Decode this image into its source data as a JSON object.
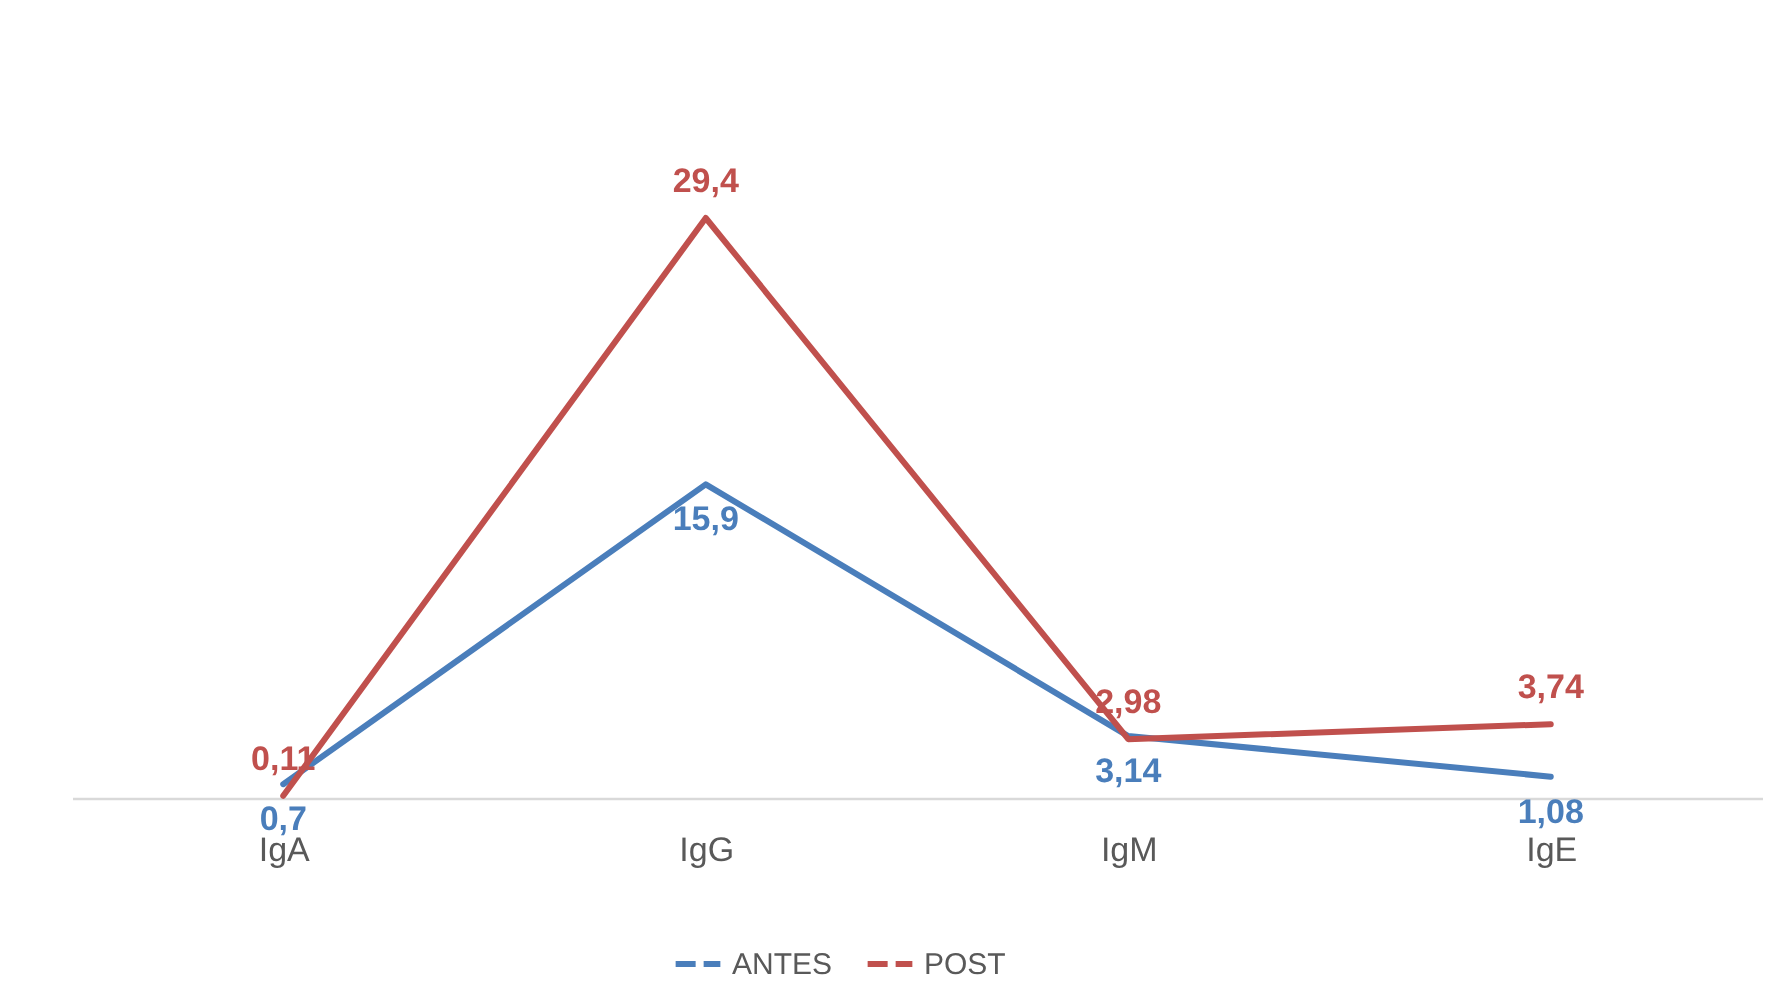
{
  "chart_data": {
    "type": "line",
    "categories": [
      "IgA",
      "IgG",
      "IgM",
      "IgE"
    ],
    "series": [
      {
        "name": "ANTES",
        "color": "#4a7ebb",
        "values": [
          0.7,
          15.9,
          3.14,
          1.08
        ],
        "value_labels": [
          "0,7",
          "15,9",
          "3,14",
          "1,08"
        ]
      },
      {
        "name": "POST",
        "color": "#c0504d",
        "values": [
          0.11,
          29.4,
          2.98,
          3.74
        ],
        "value_labels": [
          "0,11",
          "29,4",
          "2,98",
          "3,74"
        ]
      }
    ],
    "legend": "bottom",
    "grid": false,
    "marker": "none",
    "line_style": "solid"
  }
}
